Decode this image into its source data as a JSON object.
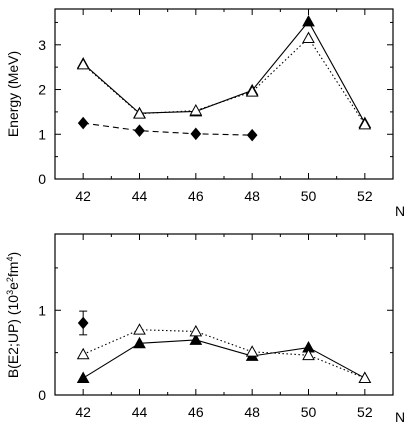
{
  "chart_data": [
    {
      "type": "line",
      "xlabel": "N",
      "ylabel": "Energy (MeV)",
      "xlim": [
        41,
        53
      ],
      "ylim": [
        0,
        3.8
      ],
      "x_ticks": [
        42,
        44,
        46,
        48,
        50,
        52
      ],
      "y_ticks": [
        0,
        1,
        2,
        3
      ],
      "grid": false,
      "series": [
        {
          "marker": "filled-triangle",
          "line": "solid",
          "color": "#000000",
          "x": [
            42,
            44,
            46,
            48,
            50,
            52
          ],
          "y": [
            2.58,
            1.47,
            1.51,
            1.98,
            3.52,
            1.25
          ]
        },
        {
          "marker": "open-triangle",
          "line": "dotted",
          "color": "#000000",
          "x": [
            42,
            44,
            46,
            48,
            50,
            52
          ],
          "y": [
            2.56,
            1.46,
            1.53,
            1.95,
            3.15,
            1.22
          ]
        },
        {
          "marker": "filled-diamond",
          "line": "dashed",
          "color": "#000000",
          "x": [
            42,
            44,
            46,
            48
          ],
          "y": [
            1.25,
            1.08,
            1.01,
            0.98
          ]
        }
      ]
    },
    {
      "type": "line",
      "xlabel": "N",
      "ylabel": "B(E2;UP) (10³e²fm⁴)",
      "ylabel_parts": {
        "pre": "B(E2;UP) (10",
        "sup1": "3",
        "mid": "e",
        "sup2": "2",
        "mid2": "fm",
        "sup3": "4",
        "post": ")"
      },
      "xlim": [
        41,
        53
      ],
      "ylim": [
        0,
        1.9
      ],
      "x_ticks": [
        42,
        44,
        46,
        48,
        50,
        52
      ],
      "y_ticks": [
        0,
        1
      ],
      "grid": false,
      "series": [
        {
          "marker": "filled-triangle",
          "line": "solid",
          "color": "#000000",
          "x": [
            42,
            44,
            46,
            48,
            50,
            52
          ],
          "y": [
            0.2,
            0.61,
            0.65,
            0.46,
            0.56,
            0.2
          ]
        },
        {
          "marker": "open-triangle",
          "line": "dotted",
          "color": "#000000",
          "x": [
            42,
            44,
            46,
            48,
            50,
            52
          ],
          "y": [
            0.48,
            0.77,
            0.75,
            0.51,
            0.47,
            0.2
          ]
        },
        {
          "marker": "filled-diamond",
          "line": "none",
          "color": "#000000",
          "x": [
            42
          ],
          "y": [
            0.85
          ],
          "error": [
            0.14
          ]
        }
      ]
    }
  ]
}
